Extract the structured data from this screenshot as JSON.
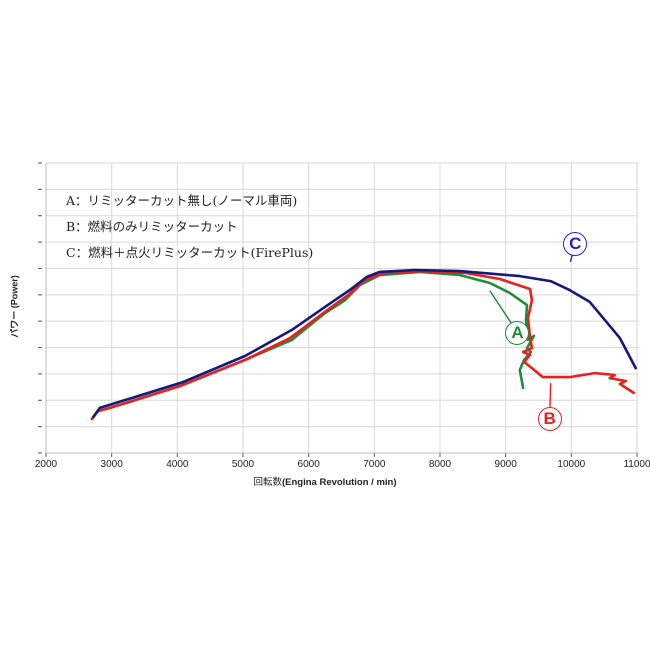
{
  "chart_data": {
    "type": "line",
    "title": "",
    "xlabel": "回転数(Engina Revolution / min)",
    "xlabel_jp": "回転数",
    "xlabel_en": "(Engina Revolution / min)",
    "ylabel": "パワー (Power)",
    "xlim": [
      2000,
      11000
    ],
    "ylim": [
      0,
      11
    ],
    "x_ticks": [
      2000,
      3000,
      4000,
      5000,
      6000,
      7000,
      8000,
      9000,
      10000,
      11000
    ],
    "y_ticks_labeled": false,
    "grid": true,
    "legend": [
      "A：リミッターカット無し(ノーマル車両)",
      "B：燃料のみリミッターカット",
      "C：燃料＋点火リミッターカット(FirePlus)"
    ],
    "series": [
      {
        "name": "A",
        "label": "A：リミッターカット無し(ノーマル車両)",
        "color": "#1e8c3a",
        "points": [
          [
            2700,
            1.29
          ],
          [
            2790,
            1.59
          ],
          [
            2975,
            1.71
          ],
          [
            4040,
            2.54
          ],
          [
            5030,
            3.53
          ],
          [
            5745,
            4.29
          ],
          [
            6250,
            5.31
          ],
          [
            6555,
            5.8
          ],
          [
            6780,
            6.37
          ],
          [
            7085,
            6.75
          ],
          [
            7695,
            6.87
          ],
          [
            8300,
            6.75
          ],
          [
            8760,
            6.45
          ],
          [
            9065,
            6.07
          ],
          [
            9325,
            5.61
          ],
          [
            9310,
            5.05
          ],
          [
            9340,
            4.29
          ],
          [
            9430,
            4.44
          ],
          [
            9325,
            3.98
          ],
          [
            9385,
            3.83
          ],
          [
            9280,
            3.53
          ],
          [
            9215,
            3.15
          ],
          [
            9265,
            2.47
          ]
        ]
      },
      {
        "name": "B",
        "label": "B：燃料のみリミッターカット",
        "color": "#e8201e",
        "points": [
          [
            2700,
            1.29
          ],
          [
            2790,
            1.59
          ],
          [
            2975,
            1.71
          ],
          [
            4040,
            2.54
          ],
          [
            5030,
            3.53
          ],
          [
            5715,
            4.36
          ],
          [
            6325,
            5.5
          ],
          [
            6600,
            5.99
          ],
          [
            6855,
            6.56
          ],
          [
            7160,
            6.83
          ],
          [
            7695,
            6.9
          ],
          [
            8380,
            6.83
          ],
          [
            8910,
            6.6
          ],
          [
            9370,
            6.22
          ],
          [
            9400,
            5.8
          ],
          [
            9340,
            5.12
          ],
          [
            9370,
            4.4
          ],
          [
            9400,
            3.98
          ],
          [
            9265,
            3.83
          ],
          [
            9370,
            3.72
          ],
          [
            9280,
            3.45
          ],
          [
            9400,
            3.22
          ],
          [
            9565,
            2.88
          ],
          [
            9975,
            2.88
          ],
          [
            10355,
            3.03
          ],
          [
            10660,
            2.96
          ],
          [
            10585,
            2.84
          ],
          [
            10830,
            2.73
          ],
          [
            10740,
            2.62
          ],
          [
            10950,
            2.28
          ]
        ]
      },
      {
        "name": "C",
        "label": "C：燃料＋点火リミッターカット(FirePlus)",
        "color": "#14197a",
        "points": [
          [
            2720,
            1.37
          ],
          [
            2820,
            1.71
          ],
          [
            4085,
            2.69
          ],
          [
            5030,
            3.68
          ],
          [
            5745,
            4.67
          ],
          [
            6290,
            5.61
          ],
          [
            6625,
            6.18
          ],
          [
            6885,
            6.68
          ],
          [
            7085,
            6.87
          ],
          [
            7615,
            6.94
          ],
          [
            8300,
            6.9
          ],
          [
            9215,
            6.71
          ],
          [
            9685,
            6.52
          ],
          [
            9975,
            6.18
          ],
          [
            10280,
            5.73
          ],
          [
            10510,
            5.05
          ],
          [
            10740,
            4.36
          ],
          [
            10980,
            3.22
          ]
        ]
      }
    ],
    "annotations": [
      {
        "text": "A",
        "color": "#1e8c3a",
        "circle_at": [
          9180,
          4.57
        ],
        "points_to": [
          8760,
          6.15
        ]
      },
      {
        "text": "B",
        "color": "#e8201e",
        "circle_at": [
          9670,
          1.29
        ],
        "points_to": [
          9685,
          2.65
        ]
      },
      {
        "text": "C",
        "color": "#2323d6",
        "circle_at": [
          10060,
          7.94
        ],
        "points_to": [
          9985,
          7.25
        ]
      }
    ]
  },
  "axes": {
    "x_tick_labels": [
      "2000",
      "3000",
      "4000",
      "5000",
      "6000",
      "7000",
      "8000",
      "9000",
      "10000",
      "11000"
    ]
  },
  "legend": {
    "line_a": "A：リミッターカット無し(ノーマル車両)",
    "line_b": "B：燃料のみリミッターカット",
    "line_c": "C：燃料＋点火リミッターカット(FirePlus)"
  }
}
